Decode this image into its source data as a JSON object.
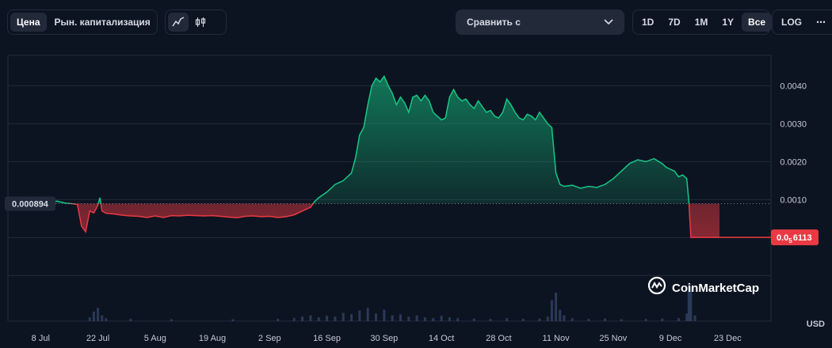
{
  "toolbar": {
    "price_tab": "Цена",
    "marketcap_tab": "Рын. капитализация",
    "line_chart_icon": "line-chart-icon",
    "candle_chart_icon": "candlestick-icon",
    "compare_label": "Сравнить с",
    "ranges": [
      "1D",
      "7D",
      "1M",
      "1Y",
      "Все"
    ],
    "active_range": "Все",
    "log_label": "LOG",
    "more_icon": "more-icon"
  },
  "colors": {
    "up": "#16c784",
    "down": "#ea3943",
    "background": "#0d1421"
  },
  "chart_data": {
    "type": "area",
    "baseline_label": "0.000894",
    "baseline_value": 0.000894,
    "current_label_main": "0.0",
    "current_label_sub": "5",
    "current_label_rest": "6113",
    "current_value": 6.113e-06,
    "currency": "USD",
    "y_ticks": [
      {
        "v": 0.001,
        "label": "0.0010"
      },
      {
        "v": 0.002,
        "label": "0.0020"
      },
      {
        "v": 0.003,
        "label": "0.0030"
      },
      {
        "v": 0.004,
        "label": "0.0040"
      }
    ],
    "ylim": [
      -0.0022,
      0.0048
    ],
    "xlim": [
      0,
      174
    ],
    "x_ticks": [
      {
        "d": 8,
        "label": "8 Jul"
      },
      {
        "d": 22,
        "label": "22 Jul"
      },
      {
        "d": 36,
        "label": "5 Aug"
      },
      {
        "d": 50,
        "label": "19 Aug"
      },
      {
        "d": 64,
        "label": "2 Sep"
      },
      {
        "d": 78,
        "label": "16 Sep"
      },
      {
        "d": 92,
        "label": "30 Sep"
      },
      {
        "d": 106,
        "label": "14 Oct"
      },
      {
        "d": 120,
        "label": "28 Oct"
      },
      {
        "d": 134,
        "label": "11 Nov"
      },
      {
        "d": 148,
        "label": "25 Nov"
      },
      {
        "d": 162,
        "label": "9 Dec"
      },
      {
        "d": 176,
        "label": "23 Dec"
      }
    ],
    "price": [
      [
        0,
        0.0009
      ],
      [
        2,
        0.00098
      ],
      [
        4,
        0.00096
      ],
      [
        6,
        0.00095
      ],
      [
        8,
        0.00094
      ],
      [
        10,
        0.00093
      ],
      [
        12,
        0.00096
      ],
      [
        14,
        0.00091
      ],
      [
        16,
        0.00089
      ],
      [
        17,
        0.00087
      ],
      [
        18,
        0.0003
      ],
      [
        19,
        0.00015
      ],
      [
        20,
        0.0007
      ],
      [
        21,
        0.00065
      ],
      [
        22,
        0.00085
      ],
      [
        22.5,
        0.00105
      ],
      [
        23,
        0.0007
      ],
      [
        24,
        0.00064
      ],
      [
        26,
        0.00062
      ],
      [
        28,
        0.00059
      ],
      [
        30,
        0.00057
      ],
      [
        32,
        0.00056
      ],
      [
        34,
        0.00053
      ],
      [
        36,
        0.00057
      ],
      [
        38,
        0.00053
      ],
      [
        40,
        0.00058
      ],
      [
        42,
        0.00057
      ],
      [
        44,
        0.00059
      ],
      [
        46,
        0.00058
      ],
      [
        48,
        0.00057
      ],
      [
        50,
        0.00058
      ],
      [
        52,
        0.00056
      ],
      [
        54,
        0.00054
      ],
      [
        56,
        0.00052
      ],
      [
        58,
        0.00056
      ],
      [
        60,
        0.00057
      ],
      [
        62,
        0.00055
      ],
      [
        64,
        0.00056
      ],
      [
        66,
        0.00053
      ],
      [
        68,
        0.00055
      ],
      [
        70,
        0.0006
      ],
      [
        72,
        0.0007
      ],
      [
        74,
        0.0008
      ],
      [
        75,
        0.00095
      ],
      [
        76,
        0.00105
      ],
      [
        78,
        0.0012
      ],
      [
        80,
        0.0014
      ],
      [
        82,
        0.0015
      ],
      [
        84,
        0.0017
      ],
      [
        85,
        0.0021
      ],
      [
        86,
        0.0027
      ],
      [
        87,
        0.0029
      ],
      [
        88,
        0.0035
      ],
      [
        89,
        0.004
      ],
      [
        90,
        0.0042
      ],
      [
        91,
        0.0041
      ],
      [
        92,
        0.00425
      ],
      [
        93,
        0.004
      ],
      [
        94,
        0.0038
      ],
      [
        95,
        0.0035
      ],
      [
        96,
        0.0037
      ],
      [
        97,
        0.00355
      ],
      [
        98,
        0.0033
      ],
      [
        99,
        0.0037
      ],
      [
        100,
        0.00375
      ],
      [
        101,
        0.0036
      ],
      [
        102,
        0.00375
      ],
      [
        103,
        0.0036
      ],
      [
        104,
        0.0033
      ],
      [
        105,
        0.0032
      ],
      [
        106,
        0.0031
      ],
      [
        107,
        0.00315
      ],
      [
        108,
        0.0037
      ],
      [
        109,
        0.0039
      ],
      [
        110,
        0.0037
      ],
      [
        111,
        0.0036
      ],
      [
        112,
        0.00365
      ],
      [
        113,
        0.0035
      ],
      [
        114,
        0.0034
      ],
      [
        115,
        0.0036
      ],
      [
        116,
        0.00345
      ],
      [
        117,
        0.0033
      ],
      [
        118,
        0.00335
      ],
      [
        119,
        0.0032
      ],
      [
        120,
        0.00315
      ],
      [
        121,
        0.0033
      ],
      [
        122,
        0.00365
      ],
      [
        123,
        0.0035
      ],
      [
        124,
        0.0033
      ],
      [
        125,
        0.00315
      ],
      [
        126,
        0.0031
      ],
      [
        127,
        0.00325
      ],
      [
        128,
        0.0032
      ],
      [
        129,
        0.0031
      ],
      [
        130,
        0.0033
      ],
      [
        131,
        0.00315
      ],
      [
        132,
        0.003
      ],
      [
        133,
        0.0029
      ],
      [
        134,
        0.0017
      ],
      [
        135,
        0.0014
      ],
      [
        136,
        0.00135
      ],
      [
        138,
        0.00138
      ],
      [
        140,
        0.0013
      ],
      [
        142,
        0.00135
      ],
      [
        144,
        0.00132
      ],
      [
        146,
        0.0014
      ],
      [
        148,
        0.00155
      ],
      [
        150,
        0.00175
      ],
      [
        152,
        0.00195
      ],
      [
        154,
        0.00205
      ],
      [
        156,
        0.002
      ],
      [
        158,
        0.00208
      ],
      [
        160,
        0.00195
      ],
      [
        161,
        0.00185
      ],
      [
        162,
        0.0018
      ],
      [
        163,
        0.00175
      ],
      [
        164,
        0.0016
      ],
      [
        165,
        0.00165
      ],
      [
        166,
        0.00155
      ],
      [
        166.5,
        0.00095
      ],
      [
        167,
        6e-06
      ],
      [
        174,
        6e-06
      ]
    ],
    "volume": [
      [
        20,
        0.1
      ],
      [
        21,
        0.25
      ],
      [
        22,
        0.35
      ],
      [
        23,
        0.15
      ],
      [
        24,
        0.08
      ],
      [
        30,
        0.06
      ],
      [
        40,
        0.05
      ],
      [
        55,
        0.05
      ],
      [
        66,
        0.06
      ],
      [
        70,
        0.08
      ],
      [
        72,
        0.12
      ],
      [
        74,
        0.15
      ],
      [
        76,
        0.1
      ],
      [
        78,
        0.14
      ],
      [
        80,
        0.12
      ],
      [
        82,
        0.22
      ],
      [
        84,
        0.18
      ],
      [
        86,
        0.28
      ],
      [
        88,
        0.35
      ],
      [
        90,
        0.2
      ],
      [
        92,
        0.3
      ],
      [
        94,
        0.15
      ],
      [
        96,
        0.18
      ],
      [
        98,
        0.12
      ],
      [
        100,
        0.15
      ],
      [
        102,
        0.1
      ],
      [
        104,
        0.08
      ],
      [
        106,
        0.14
      ],
      [
        108,
        0.1
      ],
      [
        110,
        0.08
      ],
      [
        114,
        0.07
      ],
      [
        118,
        0.06
      ],
      [
        122,
        0.08
      ],
      [
        126,
        0.06
      ],
      [
        130,
        0.07
      ],
      [
        132,
        0.12
      ],
      [
        133,
        0.55
      ],
      [
        134,
        0.75
      ],
      [
        135,
        0.3
      ],
      [
        136,
        0.15
      ],
      [
        138,
        0.08
      ],
      [
        142,
        0.06
      ],
      [
        146,
        0.07
      ],
      [
        150,
        0.05
      ],
      [
        156,
        0.06
      ],
      [
        160,
        0.07
      ],
      [
        164,
        0.08
      ],
      [
        166,
        0.2
      ],
      [
        166.5,
        1.0
      ],
      [
        167,
        0.9
      ],
      [
        168,
        0.15
      ]
    ]
  },
  "watermark": {
    "brand": "CoinMarketCap"
  }
}
